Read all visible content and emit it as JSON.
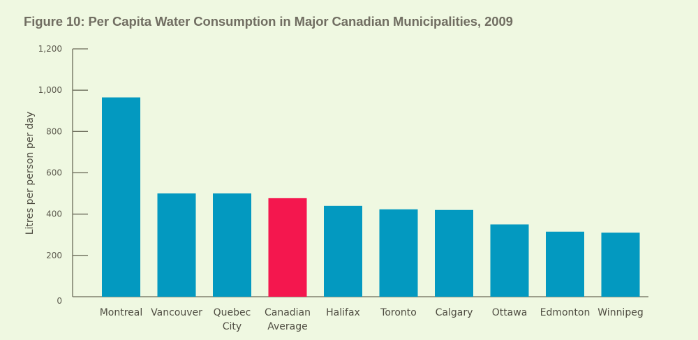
{
  "chart_data": {
    "type": "bar",
    "title": "Figure 10: Per Capita Water Consumption in Major Canadian Municipalities, 2009",
    "xlabel": "",
    "ylabel": "Litres per person per day",
    "ylim": [
      0,
      1200
    ],
    "yticks": [
      0,
      200,
      400,
      600,
      800,
      1000,
      1200
    ],
    "ytick_labels": [
      "0",
      "200",
      "400",
      "600",
      "800",
      "1,000",
      "1,200"
    ],
    "grid": false,
    "categories": [
      [
        "Montreal"
      ],
      [
        "Vancouver"
      ],
      [
        "Quebec",
        "City"
      ],
      [
        "Canadian",
        "Average"
      ],
      [
        "Halifax"
      ],
      [
        "Toronto"
      ],
      [
        "Calgary"
      ],
      [
        "Ottawa"
      ],
      [
        "Edmonton"
      ],
      [
        "Winnipeg"
      ]
    ],
    "values": [
      965,
      500,
      500,
      477,
      440,
      423,
      420,
      350,
      315,
      310
    ],
    "highlight_index": 3,
    "colors": {
      "bar": "#0399c0",
      "highlight": "#f4174e",
      "axis": "#6a6a58",
      "background": "#eff8e1"
    }
  }
}
